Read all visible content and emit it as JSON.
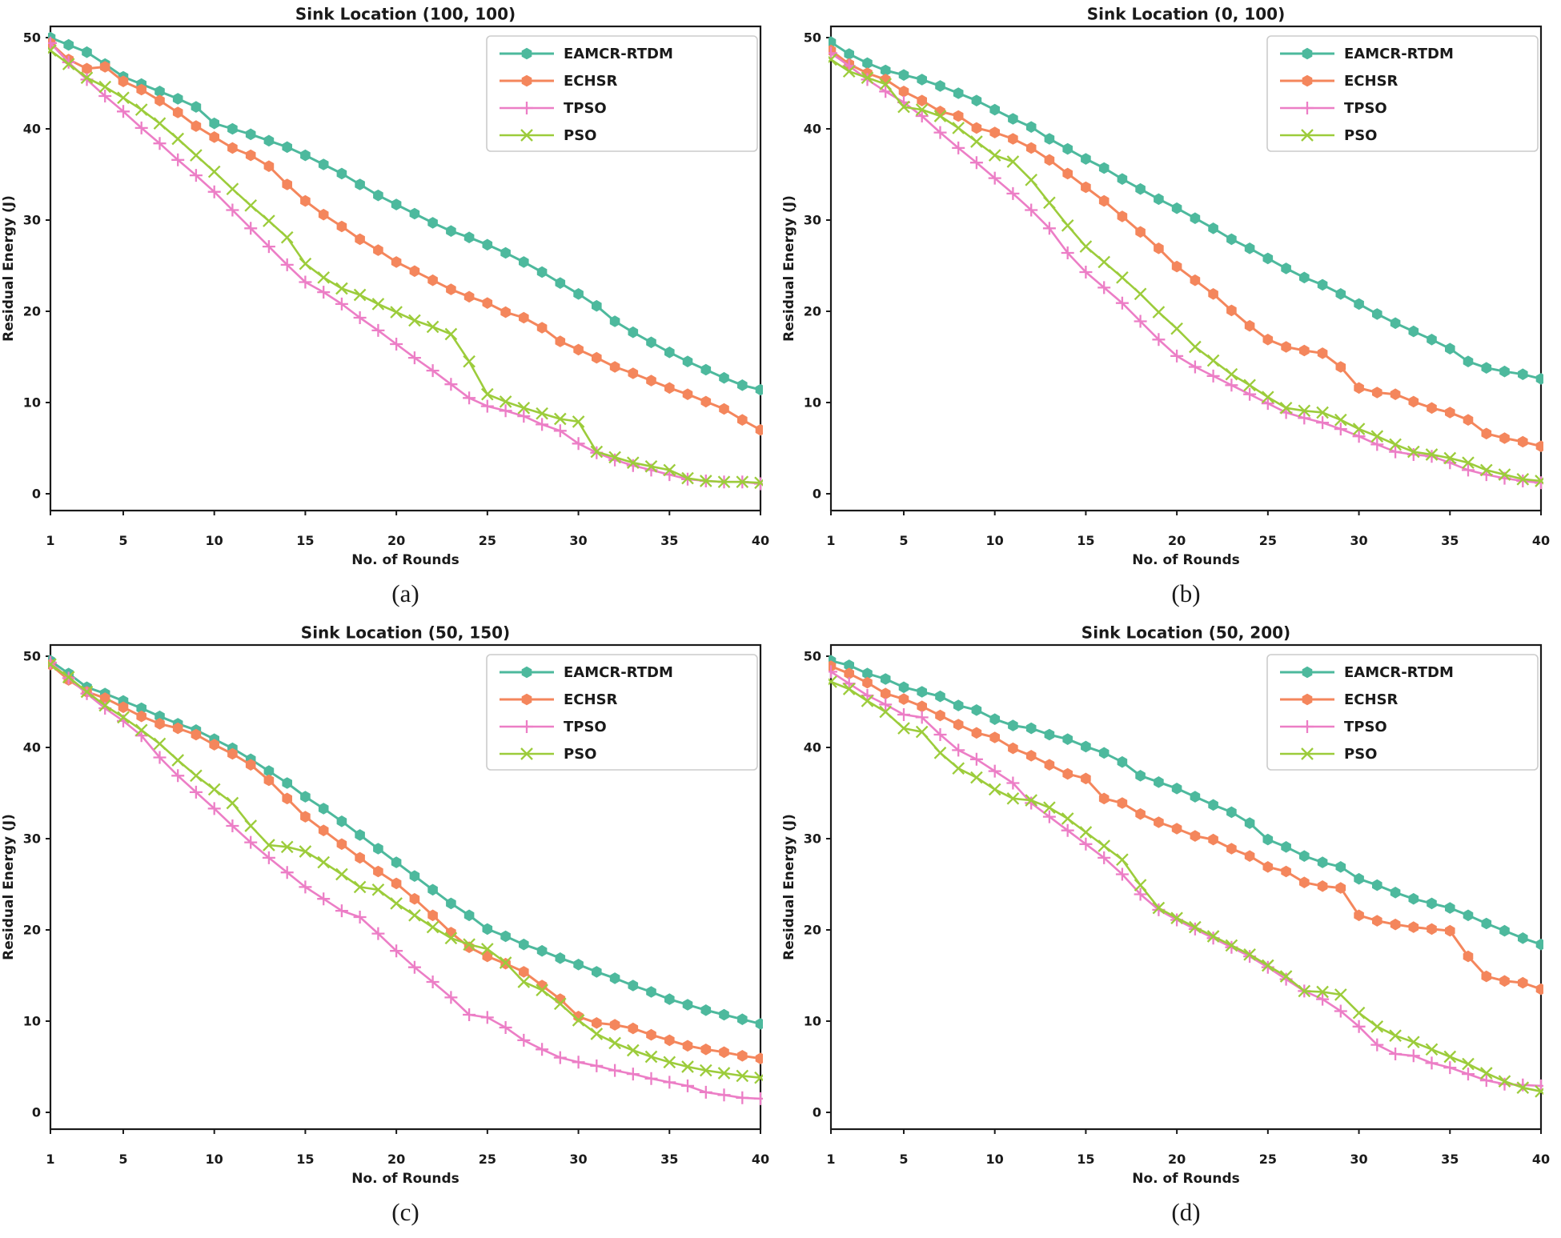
{
  "figure": {
    "background": "#ffffff",
    "axis_color": "#1a1a1a",
    "xlabel": "No. of Rounds",
    "ylabel": "Residual Energy (J)",
    "x_ticks": [
      1,
      5,
      10,
      15,
      20,
      25,
      30,
      35,
      40
    ],
    "y_ticks": [
      0,
      10,
      20,
      30,
      40,
      50
    ]
  },
  "chart_data": [
    {
      "type": "line",
      "title": "Sink Location (100, 100)",
      "caption": "(a)",
      "xlabel": "No. of Rounds",
      "ylabel": "Residual Energy (J)",
      "x_range": [
        1,
        40
      ],
      "ylim": [
        0,
        50
      ],
      "grid": false,
      "legend_position": "upper right",
      "series": [
        {
          "name": "EAMCR-RTDM",
          "color": "#4db99d",
          "marker": "hexagon",
          "values": [
            50.0,
            49.2,
            48.4,
            47.1,
            45.7,
            44.9,
            44.1,
            43.3,
            42.4,
            40.6,
            40.0,
            39.4,
            38.7,
            38.0,
            37.1,
            36.1,
            35.1,
            33.9,
            32.7,
            31.7,
            30.7,
            29.7,
            28.8,
            28.1,
            27.3,
            26.4,
            25.4,
            24.3,
            23.1,
            21.9,
            20.6,
            18.9,
            17.7,
            16.6,
            15.5,
            14.5,
            13.6,
            12.7,
            11.9,
            11.4
          ]
        },
        {
          "name": "ECHSR",
          "color": "#f4865c",
          "marker": "hexagon",
          "values": [
            49.4,
            47.6,
            46.6,
            46.8,
            45.2,
            44.3,
            43.1,
            41.8,
            40.3,
            39.1,
            37.9,
            37.1,
            35.9,
            33.9,
            32.1,
            30.6,
            29.3,
            27.9,
            26.7,
            25.4,
            24.4,
            23.4,
            22.4,
            21.6,
            20.9,
            19.9,
            19.3,
            18.2,
            16.7,
            15.8,
            14.9,
            13.9,
            13.2,
            12.4,
            11.6,
            10.9,
            10.1,
            9.3,
            8.1,
            7.0
          ]
        },
        {
          "name": "TPSO",
          "color": "#ec7ec6",
          "marker": "plus",
          "values": [
            49.4,
            47.3,
            45.4,
            43.6,
            41.9,
            40.1,
            38.4,
            36.6,
            34.9,
            33.1,
            31.1,
            29.1,
            27.1,
            25.1,
            23.2,
            22.1,
            20.8,
            19.3,
            17.9,
            16.4,
            14.9,
            13.5,
            12.0,
            10.5,
            9.6,
            9.1,
            8.5,
            7.6,
            6.9,
            5.5,
            4.5,
            3.7,
            3.1,
            2.6,
            2.1,
            1.6,
            1.4,
            1.3,
            1.3,
            1.1
          ]
        },
        {
          "name": "PSO",
          "color": "#9ccc3b",
          "marker": "x",
          "values": [
            48.6,
            47.1,
            45.6,
            44.6,
            43.4,
            42.1,
            40.6,
            38.9,
            37.1,
            35.3,
            33.4,
            31.6,
            29.9,
            28.1,
            25.2,
            23.7,
            22.5,
            21.8,
            20.8,
            19.9,
            19.0,
            18.3,
            17.5,
            14.5,
            10.9,
            10.1,
            9.4,
            8.8,
            8.2,
            7.9,
            4.6,
            4.0,
            3.4,
            3.0,
            2.6,
            1.7,
            1.4,
            1.3,
            1.3,
            1.2
          ]
        }
      ]
    },
    {
      "type": "line",
      "title": "Sink Location (0, 100)",
      "caption": "(b)",
      "xlabel": "No. of Rounds",
      "ylabel": "Residual Energy (J)",
      "x_range": [
        1,
        40
      ],
      "ylim": [
        0,
        50
      ],
      "grid": false,
      "legend_position": "upper right",
      "series": [
        {
          "name": "EAMCR-RTDM",
          "color": "#4db99d",
          "marker": "hexagon",
          "values": [
            49.5,
            48.2,
            47.2,
            46.4,
            45.9,
            45.4,
            44.7,
            43.9,
            43.1,
            42.1,
            41.1,
            40.2,
            38.9,
            37.8,
            36.7,
            35.7,
            34.5,
            33.4,
            32.3,
            31.3,
            30.2,
            29.1,
            27.9,
            26.9,
            25.8,
            24.7,
            23.7,
            22.9,
            21.9,
            20.8,
            19.7,
            18.7,
            17.8,
            16.9,
            15.9,
            14.5,
            13.8,
            13.4,
            13.1,
            12.6
          ]
        },
        {
          "name": "ECHSR",
          "color": "#f4865c",
          "marker": "hexagon",
          "values": [
            48.6,
            47.1,
            46.1,
            45.4,
            44.1,
            43.1,
            41.9,
            41.4,
            40.1,
            39.6,
            38.9,
            37.9,
            36.6,
            35.1,
            33.6,
            32.1,
            30.4,
            28.7,
            26.9,
            24.9,
            23.4,
            21.9,
            20.1,
            18.4,
            16.9,
            16.1,
            15.7,
            15.4,
            13.9,
            11.6,
            11.1,
            10.9,
            10.1,
            9.4,
            8.9,
            8.1,
            6.6,
            6.1,
            5.7,
            5.2
          ]
        },
        {
          "name": "TPSO",
          "color": "#ec7ec6",
          "marker": "plus",
          "values": [
            48.3,
            46.9,
            45.4,
            44.1,
            42.9,
            41.4,
            39.6,
            37.9,
            36.3,
            34.6,
            32.9,
            31.1,
            29.1,
            26.4,
            24.3,
            22.6,
            20.9,
            18.9,
            16.9,
            15.1,
            13.9,
            12.9,
            11.9,
            10.9,
            9.9,
            8.9,
            8.3,
            7.8,
            7.1,
            6.3,
            5.4,
            4.6,
            4.3,
            4.1,
            3.4,
            2.6,
            2.1,
            1.7,
            1.4,
            1.2
          ]
        },
        {
          "name": "PSO",
          "color": "#9ccc3b",
          "marker": "x",
          "values": [
            47.6,
            46.3,
            45.6,
            44.9,
            42.4,
            42.1,
            41.4,
            40.1,
            38.6,
            37.1,
            36.4,
            34.4,
            31.9,
            29.4,
            27.1,
            25.4,
            23.7,
            21.9,
            19.9,
            18.1,
            16.1,
            14.6,
            13.1,
            11.9,
            10.6,
            9.4,
            9.1,
            8.9,
            8.1,
            7.1,
            6.3,
            5.4,
            4.6,
            4.3,
            3.9,
            3.4,
            2.6,
            2.1,
            1.6,
            1.4
          ]
        }
      ]
    },
    {
      "type": "line",
      "title": "Sink Location (50, 150)",
      "caption": "(c)",
      "xlabel": "No. of Rounds",
      "ylabel": "Residual Energy (J)",
      "x_range": [
        1,
        40
      ],
      "ylim": [
        0,
        50
      ],
      "grid": false,
      "legend_position": "upper right",
      "series": [
        {
          "name": "EAMCR-RTDM",
          "color": "#4db99d",
          "marker": "hexagon",
          "values": [
            49.5,
            48.1,
            46.6,
            45.9,
            45.1,
            44.3,
            43.4,
            42.6,
            41.9,
            40.9,
            39.9,
            38.7,
            37.4,
            36.1,
            34.6,
            33.3,
            31.9,
            30.4,
            28.9,
            27.4,
            25.9,
            24.4,
            22.9,
            21.6,
            20.1,
            19.3,
            18.4,
            17.7,
            16.9,
            16.2,
            15.4,
            14.7,
            13.9,
            13.2,
            12.4,
            11.8,
            11.2,
            10.7,
            10.2,
            9.7
          ]
        },
        {
          "name": "ECHSR",
          "color": "#f4865c",
          "marker": "hexagon",
          "values": [
            49.1,
            47.4,
            46.1,
            45.4,
            44.4,
            43.4,
            42.6,
            42.1,
            41.4,
            40.3,
            39.3,
            38.1,
            36.4,
            34.4,
            32.4,
            30.9,
            29.4,
            27.9,
            26.4,
            25.1,
            23.4,
            21.6,
            19.7,
            18.1,
            17.1,
            16.3,
            15.4,
            13.9,
            12.4,
            10.5,
            9.8,
            9.6,
            9.2,
            8.5,
            7.9,
            7.3,
            6.9,
            6.6,
            6.2,
            5.9
          ]
        },
        {
          "name": "TPSO",
          "color": "#ec7ec6",
          "marker": "plus",
          "values": [
            49.3,
            47.6,
            45.9,
            44.3,
            42.9,
            41.3,
            38.9,
            36.9,
            35.1,
            33.3,
            31.4,
            29.6,
            27.9,
            26.3,
            24.7,
            23.4,
            22.1,
            21.4,
            19.6,
            17.7,
            15.9,
            14.3,
            12.6,
            10.7,
            10.4,
            9.3,
            7.9,
            6.9,
            6.0,
            5.5,
            5.1,
            4.6,
            4.2,
            3.7,
            3.3,
            2.9,
            2.2,
            1.9,
            1.6,
            1.5
          ]
        },
        {
          "name": "PSO",
          "color": "#9ccc3b",
          "marker": "x",
          "values": [
            49.1,
            47.7,
            46.1,
            44.6,
            43.3,
            41.9,
            40.4,
            38.6,
            36.9,
            35.4,
            33.9,
            31.4,
            29.3,
            29.1,
            28.6,
            27.4,
            26.1,
            24.7,
            24.4,
            22.9,
            21.6,
            20.3,
            19.1,
            18.4,
            17.9,
            16.4,
            14.3,
            13.4,
            11.9,
            10.1,
            8.6,
            7.6,
            6.8,
            6.1,
            5.5,
            5.0,
            4.6,
            4.3,
            4.0,
            3.8
          ]
        }
      ]
    },
    {
      "type": "line",
      "title": "Sink Location (50, 200)",
      "caption": "(d)",
      "xlabel": "No. of Rounds",
      "ylabel": "Residual Energy (J)",
      "x_range": [
        1,
        40
      ],
      "ylim": [
        0,
        50
      ],
      "grid": false,
      "legend_position": "upper right",
      "series": [
        {
          "name": "EAMCR-RTDM",
          "color": "#4db99d",
          "marker": "hexagon",
          "values": [
            49.5,
            49.0,
            48.1,
            47.5,
            46.6,
            46.1,
            45.6,
            44.6,
            44.1,
            43.1,
            42.4,
            42.1,
            41.4,
            40.9,
            40.1,
            39.4,
            38.4,
            36.9,
            36.2,
            35.5,
            34.6,
            33.7,
            32.9,
            31.7,
            29.9,
            29.1,
            28.1,
            27.4,
            26.9,
            25.6,
            24.9,
            24.1,
            23.4,
            22.9,
            22.4,
            21.6,
            20.7,
            19.9,
            19.1,
            18.4
          ]
        },
        {
          "name": "ECHSR",
          "color": "#f4865c",
          "marker": "hexagon",
          "values": [
            48.9,
            48.1,
            47.1,
            45.9,
            45.3,
            44.5,
            43.5,
            42.5,
            41.6,
            41.1,
            39.9,
            39.1,
            38.1,
            37.1,
            36.6,
            34.4,
            33.9,
            32.7,
            31.8,
            31.1,
            30.3,
            29.9,
            28.9,
            28.1,
            26.9,
            26.4,
            25.2,
            24.8,
            24.6,
            21.6,
            21.0,
            20.6,
            20.3,
            20.1,
            19.9,
            17.1,
            14.9,
            14.4,
            14.2,
            13.5
          ]
        },
        {
          "name": "TPSO",
          "color": "#ec7ec6",
          "marker": "plus",
          "values": [
            48.3,
            47.0,
            45.7,
            44.7,
            43.6,
            43.3,
            41.4,
            39.7,
            38.7,
            37.4,
            36.1,
            33.9,
            32.4,
            30.9,
            29.4,
            27.9,
            26.1,
            23.9,
            22.2,
            21.1,
            20.1,
            19.1,
            18.1,
            17.1,
            15.9,
            14.6,
            13.3,
            12.4,
            11.1,
            9.4,
            7.4,
            6.4,
            6.2,
            5.4,
            4.9,
            4.2,
            3.5,
            3.1,
            3.0,
            2.9
          ]
        },
        {
          "name": "PSO",
          "color": "#9ccc3b",
          "marker": "x",
          "values": [
            47.2,
            46.4,
            45.1,
            43.9,
            42.1,
            41.7,
            39.4,
            37.7,
            36.7,
            35.4,
            34.4,
            34.2,
            33.4,
            32.2,
            30.7,
            29.2,
            27.7,
            24.9,
            22.4,
            21.3,
            20.3,
            19.3,
            18.3,
            17.3,
            16.1,
            14.9,
            13.3,
            13.2,
            12.9,
            10.9,
            9.4,
            8.4,
            7.7,
            6.9,
            6.1,
            5.3,
            4.3,
            3.4,
            2.7,
            2.3
          ]
        }
      ]
    }
  ]
}
